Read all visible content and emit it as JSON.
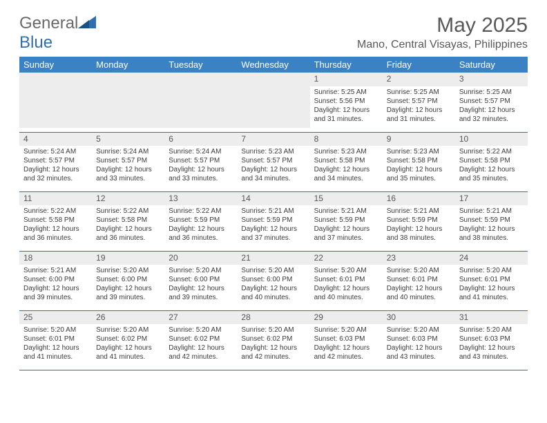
{
  "brand": {
    "word1": "General",
    "word2": "Blue"
  },
  "title": "May 2025",
  "location": "Mano, Central Visayas, Philippines",
  "colors": {
    "header_bg": "#3b82c4",
    "header_text": "#ffffff",
    "rule": "#2f6fb0",
    "daynum_bg": "#ededed",
    "text": "#3a3a3a",
    "logo_gray": "#6a6a6a",
    "logo_blue": "#2f6fb0"
  },
  "weekdays": [
    "Sunday",
    "Monday",
    "Tuesday",
    "Wednesday",
    "Thursday",
    "Friday",
    "Saturday"
  ],
  "weeks": [
    [
      null,
      null,
      null,
      null,
      {
        "n": "1",
        "sr": "5:25 AM",
        "ss": "5:56 PM",
        "dl": "12 hours and 31 minutes."
      },
      {
        "n": "2",
        "sr": "5:25 AM",
        "ss": "5:57 PM",
        "dl": "12 hours and 31 minutes."
      },
      {
        "n": "3",
        "sr": "5:25 AM",
        "ss": "5:57 PM",
        "dl": "12 hours and 32 minutes."
      }
    ],
    [
      {
        "n": "4",
        "sr": "5:24 AM",
        "ss": "5:57 PM",
        "dl": "12 hours and 32 minutes."
      },
      {
        "n": "5",
        "sr": "5:24 AM",
        "ss": "5:57 PM",
        "dl": "12 hours and 33 minutes."
      },
      {
        "n": "6",
        "sr": "5:24 AM",
        "ss": "5:57 PM",
        "dl": "12 hours and 33 minutes."
      },
      {
        "n": "7",
        "sr": "5:23 AM",
        "ss": "5:57 PM",
        "dl": "12 hours and 34 minutes."
      },
      {
        "n": "8",
        "sr": "5:23 AM",
        "ss": "5:58 PM",
        "dl": "12 hours and 34 minutes."
      },
      {
        "n": "9",
        "sr": "5:23 AM",
        "ss": "5:58 PM",
        "dl": "12 hours and 35 minutes."
      },
      {
        "n": "10",
        "sr": "5:22 AM",
        "ss": "5:58 PM",
        "dl": "12 hours and 35 minutes."
      }
    ],
    [
      {
        "n": "11",
        "sr": "5:22 AM",
        "ss": "5:58 PM",
        "dl": "12 hours and 36 minutes."
      },
      {
        "n": "12",
        "sr": "5:22 AM",
        "ss": "5:58 PM",
        "dl": "12 hours and 36 minutes."
      },
      {
        "n": "13",
        "sr": "5:22 AM",
        "ss": "5:59 PM",
        "dl": "12 hours and 36 minutes."
      },
      {
        "n": "14",
        "sr": "5:21 AM",
        "ss": "5:59 PM",
        "dl": "12 hours and 37 minutes."
      },
      {
        "n": "15",
        "sr": "5:21 AM",
        "ss": "5:59 PM",
        "dl": "12 hours and 37 minutes."
      },
      {
        "n": "16",
        "sr": "5:21 AM",
        "ss": "5:59 PM",
        "dl": "12 hours and 38 minutes."
      },
      {
        "n": "17",
        "sr": "5:21 AM",
        "ss": "5:59 PM",
        "dl": "12 hours and 38 minutes."
      }
    ],
    [
      {
        "n": "18",
        "sr": "5:21 AM",
        "ss": "6:00 PM",
        "dl": "12 hours and 39 minutes."
      },
      {
        "n": "19",
        "sr": "5:20 AM",
        "ss": "6:00 PM",
        "dl": "12 hours and 39 minutes."
      },
      {
        "n": "20",
        "sr": "5:20 AM",
        "ss": "6:00 PM",
        "dl": "12 hours and 39 minutes."
      },
      {
        "n": "21",
        "sr": "5:20 AM",
        "ss": "6:00 PM",
        "dl": "12 hours and 40 minutes."
      },
      {
        "n": "22",
        "sr": "5:20 AM",
        "ss": "6:01 PM",
        "dl": "12 hours and 40 minutes."
      },
      {
        "n": "23",
        "sr": "5:20 AM",
        "ss": "6:01 PM",
        "dl": "12 hours and 40 minutes."
      },
      {
        "n": "24",
        "sr": "5:20 AM",
        "ss": "6:01 PM",
        "dl": "12 hours and 41 minutes."
      }
    ],
    [
      {
        "n": "25",
        "sr": "5:20 AM",
        "ss": "6:01 PM",
        "dl": "12 hours and 41 minutes."
      },
      {
        "n": "26",
        "sr": "5:20 AM",
        "ss": "6:02 PM",
        "dl": "12 hours and 41 minutes."
      },
      {
        "n": "27",
        "sr": "5:20 AM",
        "ss": "6:02 PM",
        "dl": "12 hours and 42 minutes."
      },
      {
        "n": "28",
        "sr": "5:20 AM",
        "ss": "6:02 PM",
        "dl": "12 hours and 42 minutes."
      },
      {
        "n": "29",
        "sr": "5:20 AM",
        "ss": "6:03 PM",
        "dl": "12 hours and 42 minutes."
      },
      {
        "n": "30",
        "sr": "5:20 AM",
        "ss": "6:03 PM",
        "dl": "12 hours and 43 minutes."
      },
      {
        "n": "31",
        "sr": "5:20 AM",
        "ss": "6:03 PM",
        "dl": "12 hours and 43 minutes."
      }
    ]
  ],
  "labels": {
    "sunrise": "Sunrise: ",
    "sunset": "Sunset: ",
    "daylight": "Daylight: "
  }
}
